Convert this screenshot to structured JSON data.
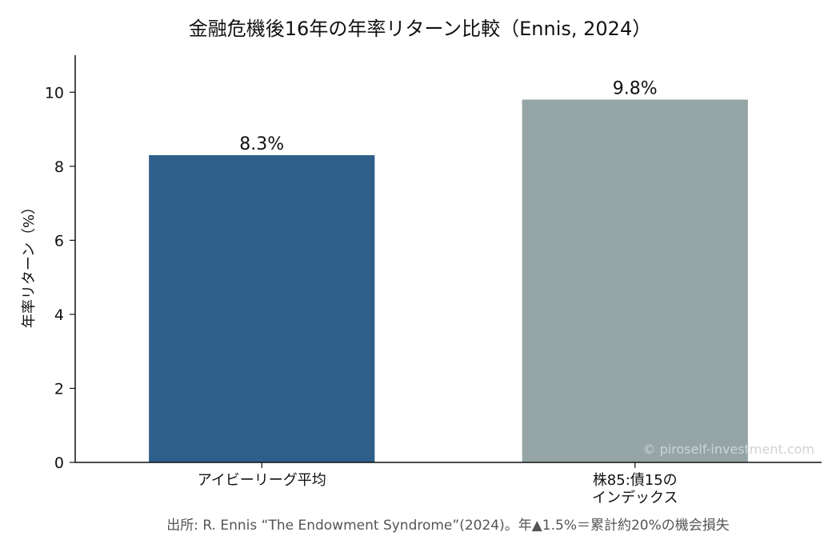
{
  "chart_data": {
    "type": "bar",
    "title": "金融危機後16年の年率リターン比較（Ennis, 2024）",
    "xlabel": "",
    "ylabel": "年率リターン（%）",
    "categories": [
      "アイビーリーグ平均",
      "株85:債15の\nインデックス"
    ],
    "values": [
      8.3,
      9.8
    ],
    "value_labels": [
      "8.3%",
      "9.8%"
    ],
    "colors": [
      "#2e5f8a",
      "#95a5a6"
    ],
    "ylim": [
      0,
      11
    ],
    "yticks": [
      0,
      2,
      4,
      6,
      8,
      10
    ],
    "grid": false,
    "legend": "none"
  },
  "watermark": "© piroself-investment.com",
  "source_note": "出所: R. Ennis “The Endowment Syndrome”(2024)。年▲1.5%＝累計約20%の機会損失"
}
